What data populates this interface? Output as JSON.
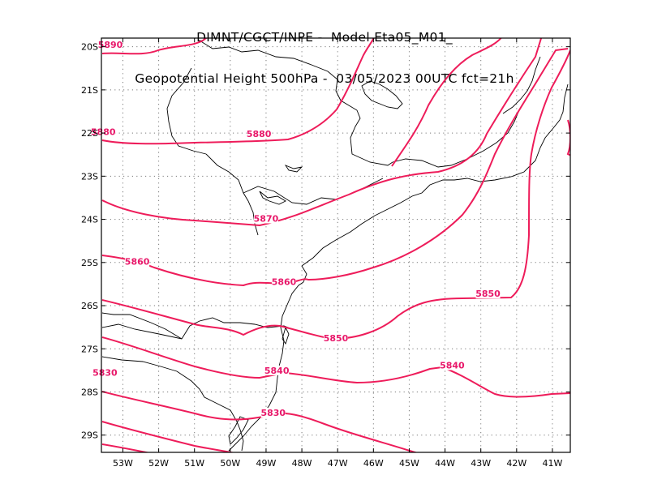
{
  "title": {
    "line1": "DIMNT/CGCT/INPE -  Model Eta05_M01_",
    "line2": "Geopotential Height 500hPa -  03/05/2023 00UTC fct=21h"
  },
  "colors": {
    "contour": "#ee1c5a",
    "contour_label": "#e8186a",
    "coast": "#000000",
    "grid": "#7a7a7a",
    "frame": "#000000"
  },
  "map": {
    "lon_range": [
      -53.6,
      -40.5
    ],
    "lat_range": [
      -29.4,
      -19.8
    ],
    "lon_ticks": [
      {
        "v": -53,
        "label": "53W"
      },
      {
        "v": -52,
        "label": "52W"
      },
      {
        "v": -51,
        "label": "51W"
      },
      {
        "v": -50,
        "label": "50W"
      },
      {
        "v": -49,
        "label": "49W"
      },
      {
        "v": -48,
        "label": "48W"
      },
      {
        "v": -47,
        "label": "47W"
      },
      {
        "v": -46,
        "label": "46W"
      },
      {
        "v": -45,
        "label": "45W"
      },
      {
        "v": -44,
        "label": "44W"
      },
      {
        "v": -43,
        "label": "43W"
      },
      {
        "v": -42,
        "label": "42W"
      },
      {
        "v": -41,
        "label": "41W"
      }
    ],
    "lat_ticks": [
      {
        "v": -20,
        "label": "20S"
      },
      {
        "v": -21,
        "label": "21S"
      },
      {
        "v": -22,
        "label": "22S"
      },
      {
        "v": -23,
        "label": "23S"
      },
      {
        "v": -24,
        "label": "24S"
      },
      {
        "v": -25,
        "label": "25S"
      },
      {
        "v": -26,
        "label": "26S"
      },
      {
        "v": -27,
        "label": "27S"
      },
      {
        "v": -28,
        "label": "28S"
      },
      {
        "v": -29,
        "label": "29S"
      }
    ],
    "contour_labels": [
      {
        "text": "5890",
        "lon": -53.35,
        "lat": -19.95
      },
      {
        "text": "5880",
        "lon": -53.55,
        "lat": -21.97
      },
      {
        "text": "5880",
        "lon": -49.2,
        "lat": -22.02
      },
      {
        "text": "5870",
        "lon": -49.0,
        "lat": -23.98
      },
      {
        "text": "5860",
        "lon": -52.6,
        "lat": -24.98
      },
      {
        "text": "5860",
        "lon": -48.5,
        "lat": -25.45
      },
      {
        "text": "5850",
        "lon": -47.05,
        "lat": -26.75
      },
      {
        "text": "5850",
        "lon": -42.8,
        "lat": -25.72
      },
      {
        "text": "5840",
        "lon": -48.7,
        "lat": -27.5
      },
      {
        "text": "5840",
        "lon": -43.8,
        "lat": -27.38
      },
      {
        "text": "5830",
        "lon": -48.8,
        "lat": -28.48
      },
      {
        "text": "5830",
        "lon": -53.5,
        "lat": -27.55
      }
    ]
  }
}
